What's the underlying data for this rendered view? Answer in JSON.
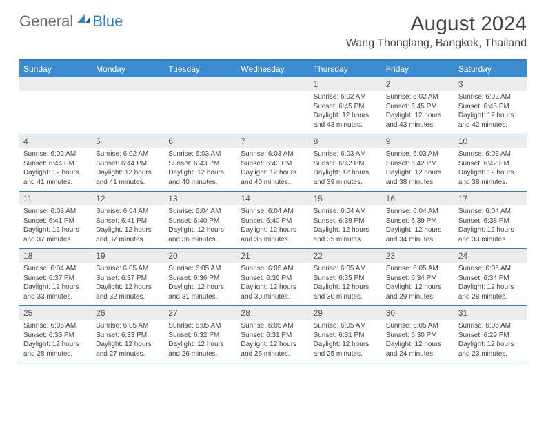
{
  "brand": {
    "part1": "General",
    "part2": "Blue"
  },
  "title": "August 2024",
  "location": "Wang Thonglang, Bangkok, Thailand",
  "colors": {
    "accent": "#3b8bd0",
    "accent_border": "#2f7fc2",
    "daynum_bg": "#ececec",
    "text": "#444444",
    "logo_gray": "#6b6b6b"
  },
  "layout": {
    "columns": 7,
    "rows": 5
  },
  "weekdays": [
    "Sunday",
    "Monday",
    "Tuesday",
    "Wednesday",
    "Thursday",
    "Friday",
    "Saturday"
  ],
  "weeks": [
    [
      {
        "n": "",
        "sr": "",
        "ss": "",
        "dl": ""
      },
      {
        "n": "",
        "sr": "",
        "ss": "",
        "dl": ""
      },
      {
        "n": "",
        "sr": "",
        "ss": "",
        "dl": ""
      },
      {
        "n": "",
        "sr": "",
        "ss": "",
        "dl": ""
      },
      {
        "n": "1",
        "sr": "Sunrise: 6:02 AM",
        "ss": "Sunset: 6:45 PM",
        "dl": "Daylight: 12 hours and 43 minutes."
      },
      {
        "n": "2",
        "sr": "Sunrise: 6:02 AM",
        "ss": "Sunset: 6:45 PM",
        "dl": "Daylight: 12 hours and 43 minutes."
      },
      {
        "n": "3",
        "sr": "Sunrise: 6:02 AM",
        "ss": "Sunset: 6:45 PM",
        "dl": "Daylight: 12 hours and 42 minutes."
      }
    ],
    [
      {
        "n": "4",
        "sr": "Sunrise: 6:02 AM",
        "ss": "Sunset: 6:44 PM",
        "dl": "Daylight: 12 hours and 41 minutes."
      },
      {
        "n": "5",
        "sr": "Sunrise: 6:02 AM",
        "ss": "Sunset: 6:44 PM",
        "dl": "Daylight: 12 hours and 41 minutes."
      },
      {
        "n": "6",
        "sr": "Sunrise: 6:03 AM",
        "ss": "Sunset: 6:43 PM",
        "dl": "Daylight: 12 hours and 40 minutes."
      },
      {
        "n": "7",
        "sr": "Sunrise: 6:03 AM",
        "ss": "Sunset: 6:43 PM",
        "dl": "Daylight: 12 hours and 40 minutes."
      },
      {
        "n": "8",
        "sr": "Sunrise: 6:03 AM",
        "ss": "Sunset: 6:42 PM",
        "dl": "Daylight: 12 hours and 39 minutes."
      },
      {
        "n": "9",
        "sr": "Sunrise: 6:03 AM",
        "ss": "Sunset: 6:42 PM",
        "dl": "Daylight: 12 hours and 38 minutes."
      },
      {
        "n": "10",
        "sr": "Sunrise: 6:03 AM",
        "ss": "Sunset: 6:42 PM",
        "dl": "Daylight: 12 hours and 38 minutes."
      }
    ],
    [
      {
        "n": "11",
        "sr": "Sunrise: 6:03 AM",
        "ss": "Sunset: 6:41 PM",
        "dl": "Daylight: 12 hours and 37 minutes."
      },
      {
        "n": "12",
        "sr": "Sunrise: 6:04 AM",
        "ss": "Sunset: 6:41 PM",
        "dl": "Daylight: 12 hours and 37 minutes."
      },
      {
        "n": "13",
        "sr": "Sunrise: 6:04 AM",
        "ss": "Sunset: 6:40 PM",
        "dl": "Daylight: 12 hours and 36 minutes."
      },
      {
        "n": "14",
        "sr": "Sunrise: 6:04 AM",
        "ss": "Sunset: 6:40 PM",
        "dl": "Daylight: 12 hours and 35 minutes."
      },
      {
        "n": "15",
        "sr": "Sunrise: 6:04 AM",
        "ss": "Sunset: 6:39 PM",
        "dl": "Daylight: 12 hours and 35 minutes."
      },
      {
        "n": "16",
        "sr": "Sunrise: 6:04 AM",
        "ss": "Sunset: 6:39 PM",
        "dl": "Daylight: 12 hours and 34 minutes."
      },
      {
        "n": "17",
        "sr": "Sunrise: 6:04 AM",
        "ss": "Sunset: 6:38 PM",
        "dl": "Daylight: 12 hours and 33 minutes."
      }
    ],
    [
      {
        "n": "18",
        "sr": "Sunrise: 6:04 AM",
        "ss": "Sunset: 6:37 PM",
        "dl": "Daylight: 12 hours and 33 minutes."
      },
      {
        "n": "19",
        "sr": "Sunrise: 6:05 AM",
        "ss": "Sunset: 6:37 PM",
        "dl": "Daylight: 12 hours and 32 minutes."
      },
      {
        "n": "20",
        "sr": "Sunrise: 6:05 AM",
        "ss": "Sunset: 6:36 PM",
        "dl": "Daylight: 12 hours and 31 minutes."
      },
      {
        "n": "21",
        "sr": "Sunrise: 6:05 AM",
        "ss": "Sunset: 6:36 PM",
        "dl": "Daylight: 12 hours and 30 minutes."
      },
      {
        "n": "22",
        "sr": "Sunrise: 6:05 AM",
        "ss": "Sunset: 6:35 PM",
        "dl": "Daylight: 12 hours and 30 minutes."
      },
      {
        "n": "23",
        "sr": "Sunrise: 6:05 AM",
        "ss": "Sunset: 6:34 PM",
        "dl": "Daylight: 12 hours and 29 minutes."
      },
      {
        "n": "24",
        "sr": "Sunrise: 6:05 AM",
        "ss": "Sunset: 6:34 PM",
        "dl": "Daylight: 12 hours and 28 minutes."
      }
    ],
    [
      {
        "n": "25",
        "sr": "Sunrise: 6:05 AM",
        "ss": "Sunset: 6:33 PM",
        "dl": "Daylight: 12 hours and 28 minutes."
      },
      {
        "n": "26",
        "sr": "Sunrise: 6:05 AM",
        "ss": "Sunset: 6:33 PM",
        "dl": "Daylight: 12 hours and 27 minutes."
      },
      {
        "n": "27",
        "sr": "Sunrise: 6:05 AM",
        "ss": "Sunset: 6:32 PM",
        "dl": "Daylight: 12 hours and 26 minutes."
      },
      {
        "n": "28",
        "sr": "Sunrise: 6:05 AM",
        "ss": "Sunset: 6:31 PM",
        "dl": "Daylight: 12 hours and 26 minutes."
      },
      {
        "n": "29",
        "sr": "Sunrise: 6:05 AM",
        "ss": "Sunset: 6:31 PM",
        "dl": "Daylight: 12 hours and 25 minutes."
      },
      {
        "n": "30",
        "sr": "Sunrise: 6:05 AM",
        "ss": "Sunset: 6:30 PM",
        "dl": "Daylight: 12 hours and 24 minutes."
      },
      {
        "n": "31",
        "sr": "Sunrise: 6:05 AM",
        "ss": "Sunset: 6:29 PM",
        "dl": "Daylight: 12 hours and 23 minutes."
      }
    ]
  ]
}
